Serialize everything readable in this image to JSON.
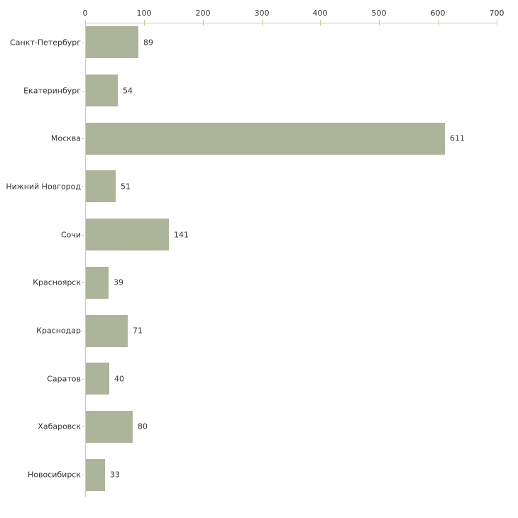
{
  "chart_data": {
    "type": "bar",
    "orientation": "horizontal",
    "title": "",
    "xlabel": "",
    "ylabel": "",
    "categories": [
      "Санкт-Петербург",
      "Екатеринбург",
      "Москва",
      "Нижний Новгород",
      "Сочи",
      "Красноярск",
      "Краснодар",
      "Саратов",
      "Хабаровск",
      "Новосибирск"
    ],
    "values": [
      89,
      54,
      611,
      51,
      141,
      39,
      71,
      40,
      80,
      33
    ],
    "value_labels": [
      "89",
      "54",
      "611",
      "51",
      "141",
      "39",
      "71",
      "40",
      "80",
      "33"
    ],
    "xticks": [
      0,
      100,
      200,
      300,
      400,
      500,
      600,
      700
    ],
    "xtick_labels": [
      "0",
      "100",
      "200",
      "300",
      "400",
      "500",
      "600",
      "700"
    ],
    "xlim": [
      0,
      700
    ],
    "grid": false,
    "legend": null,
    "axis_position": "top",
    "colors": {
      "bar": "#acb499",
      "axis_line": "#c9c9c9",
      "tick_mark": "#cacd96",
      "text": "#333333",
      "background": "#ffffff"
    }
  }
}
